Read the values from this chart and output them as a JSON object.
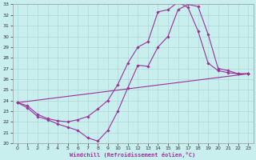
{
  "xlabel": "Windchill (Refroidissement éolien,°C)",
  "xlim": [
    -0.5,
    23.5
  ],
  "ylim": [
    20,
    33
  ],
  "xticks": [
    0,
    1,
    2,
    3,
    4,
    5,
    6,
    7,
    8,
    9,
    10,
    11,
    12,
    13,
    14,
    15,
    16,
    17,
    18,
    19,
    20,
    21,
    22,
    23
  ],
  "yticks": [
    20,
    21,
    22,
    23,
    24,
    25,
    26,
    27,
    28,
    29,
    30,
    31,
    32,
    33
  ],
  "bg_color": "#c8eeee",
  "grid_color": "#b0d8d8",
  "line_color": "#993399",
  "curves": [
    {
      "x": [
        0,
        1,
        2,
        3,
        4,
        5,
        6,
        7,
        8,
        9,
        10,
        11,
        12,
        13,
        14,
        15,
        16,
        17,
        18,
        19,
        20,
        21,
        22,
        23
      ],
      "y": [
        23.8,
        23.3,
        22.5,
        22.2,
        21.8,
        21.5,
        21.2,
        20.5,
        20.2,
        21.2,
        23.0,
        25.2,
        27.3,
        27.2,
        29.0,
        30.0,
        32.5,
        33.0,
        32.8,
        30.2,
        27.0,
        26.8,
        26.5,
        26.5
      ]
    },
    {
      "x": [
        0,
        23
      ],
      "y": [
        23.8,
        26.5
      ]
    },
    {
      "x": [
        0,
        1,
        2,
        3,
        4,
        5,
        6,
        7,
        8,
        9,
        10,
        11,
        12,
        13,
        14,
        15,
        16,
        17,
        18,
        19,
        20,
        21,
        22,
        23
      ],
      "y": [
        23.8,
        23.5,
        22.7,
        22.3,
        22.1,
        22.0,
        22.2,
        22.5,
        23.2,
        24.0,
        25.5,
        27.5,
        29.0,
        29.5,
        32.3,
        32.5,
        33.2,
        32.7,
        30.5,
        27.5,
        26.8,
        26.6,
        26.5,
        26.5
      ]
    }
  ]
}
